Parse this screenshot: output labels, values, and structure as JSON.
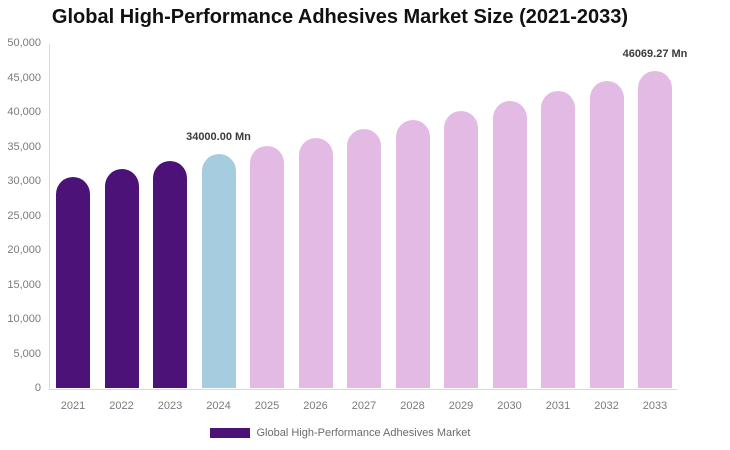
{
  "chart": {
    "title": "Global High-Performance Adhesives Market Size (2021-2033)",
    "legend": {
      "label": "Global High-Performance Adhesives Market",
      "swatch_color": "#4d1277"
    },
    "colors": {
      "historical_bar": "#4d1277",
      "current_year_bar": "#a6ccdf",
      "forecast_bar": "#e2bae4",
      "axis_line": "#d9d9d9",
      "tick_text": "#7a7a7a",
      "value_label_text": "#3b3b3b",
      "title_text": "#111111"
    }
  },
  "chart_data": {
    "type": "bar",
    "title": "Global High-Performance Adhesives Market Size (2021-2033)",
    "series_name": "Global High-Performance Adhesives Market",
    "unit": "Mn",
    "categories": [
      "2021",
      "2022",
      "2023",
      "2024",
      "2025",
      "2026",
      "2027",
      "2028",
      "2029",
      "2030",
      "2031",
      "2032",
      "2033"
    ],
    "values": [
      30700,
      31800,
      32900,
      34000,
      35170,
      36375,
      37625,
      38915,
      40250,
      41630,
      43060,
      44535,
      46069.27
    ],
    "bar_colors": [
      "#4d1277",
      "#4d1277",
      "#4d1277",
      "#a6ccdf",
      "#e2bae4",
      "#e2bae4",
      "#e2bae4",
      "#e2bae4",
      "#e2bae4",
      "#e2bae4",
      "#e2bae4",
      "#e2bae4",
      "#e2bae4"
    ],
    "ylim": [
      0,
      50000
    ],
    "ytick_interval": 5000,
    "ytick_labels": [
      "0",
      "5,000",
      "10,000",
      "15,000",
      "20,000",
      "25,000",
      "30,000",
      "35,000",
      "40,000",
      "45,000",
      "50,000"
    ],
    "grid": false,
    "legend_position": "bottom",
    "annotations": [
      {
        "category": "2024",
        "text": "34000.00 Mn"
      },
      {
        "category": "2033",
        "text": "46069.27 Mn"
      }
    ]
  }
}
